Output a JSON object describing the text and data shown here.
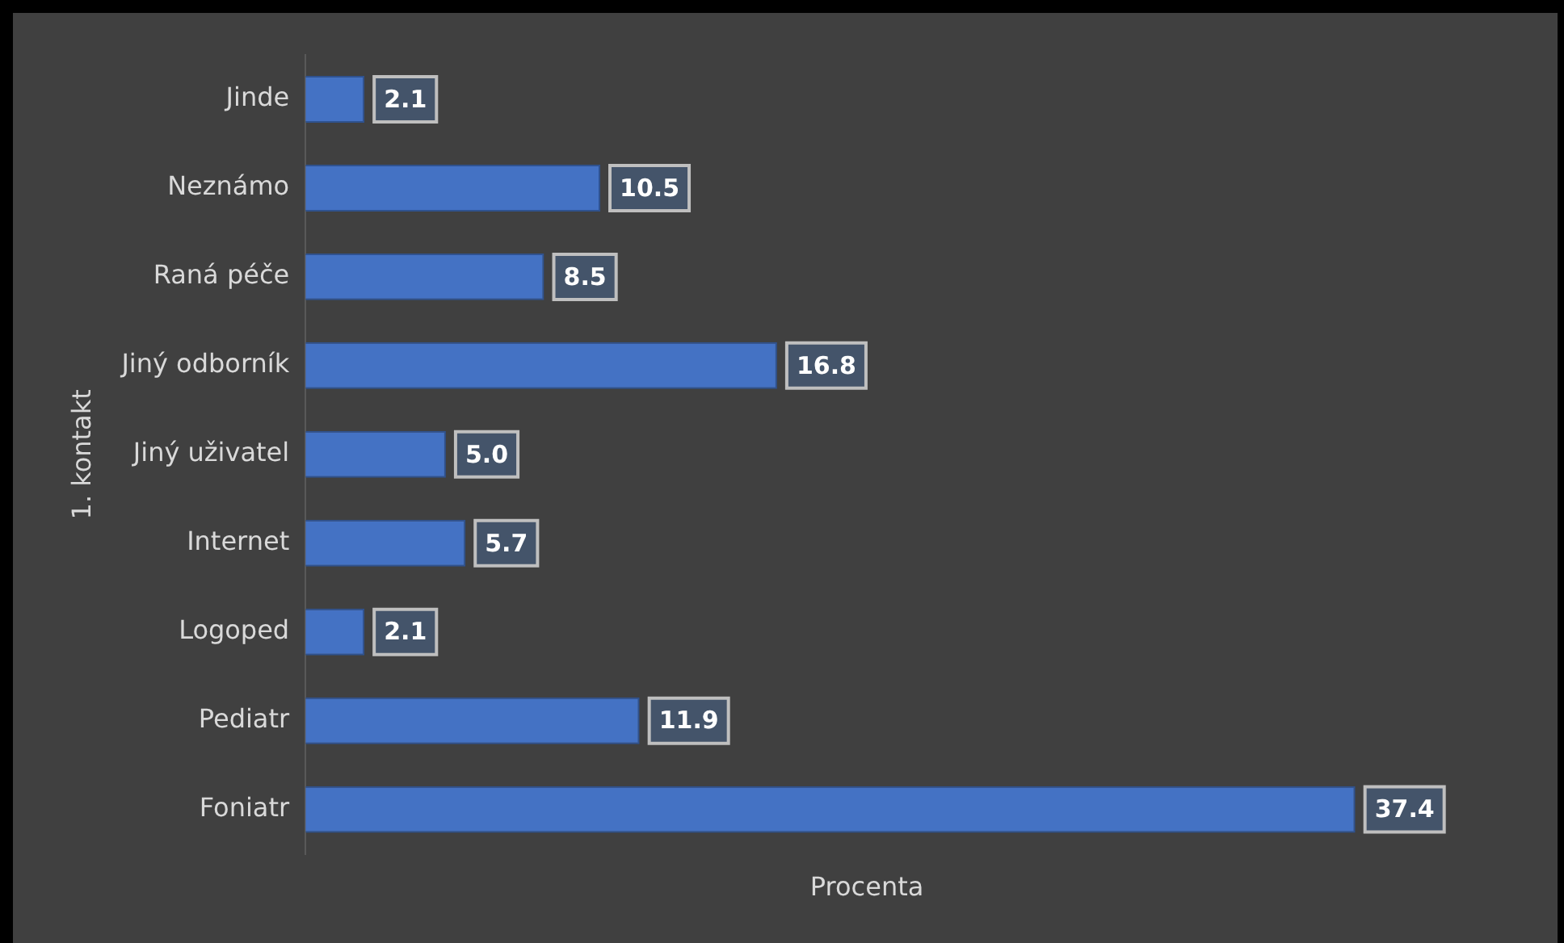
{
  "chart_data": {
    "type": "bar",
    "orientation": "horizontal",
    "xlabel": "Procenta",
    "ylabel": "1. kontakt",
    "categories": [
      "Jinde",
      "Neznámo",
      "Raná péče",
      "Jiný odborník",
      "Jiný uživatel",
      "Internet",
      "Logoped",
      "Pediatr",
      "Foniatr"
    ],
    "values": [
      2.1,
      10.5,
      8.5,
      16.8,
      5.0,
      5.7,
      2.1,
      11.9,
      37.4
    ],
    "value_labels": [
      "2.1",
      "10.5",
      "8.5",
      "16.8",
      "5.0",
      "5.7",
      "2.1",
      "11.9",
      "37.4"
    ],
    "color": "#4472c4"
  }
}
